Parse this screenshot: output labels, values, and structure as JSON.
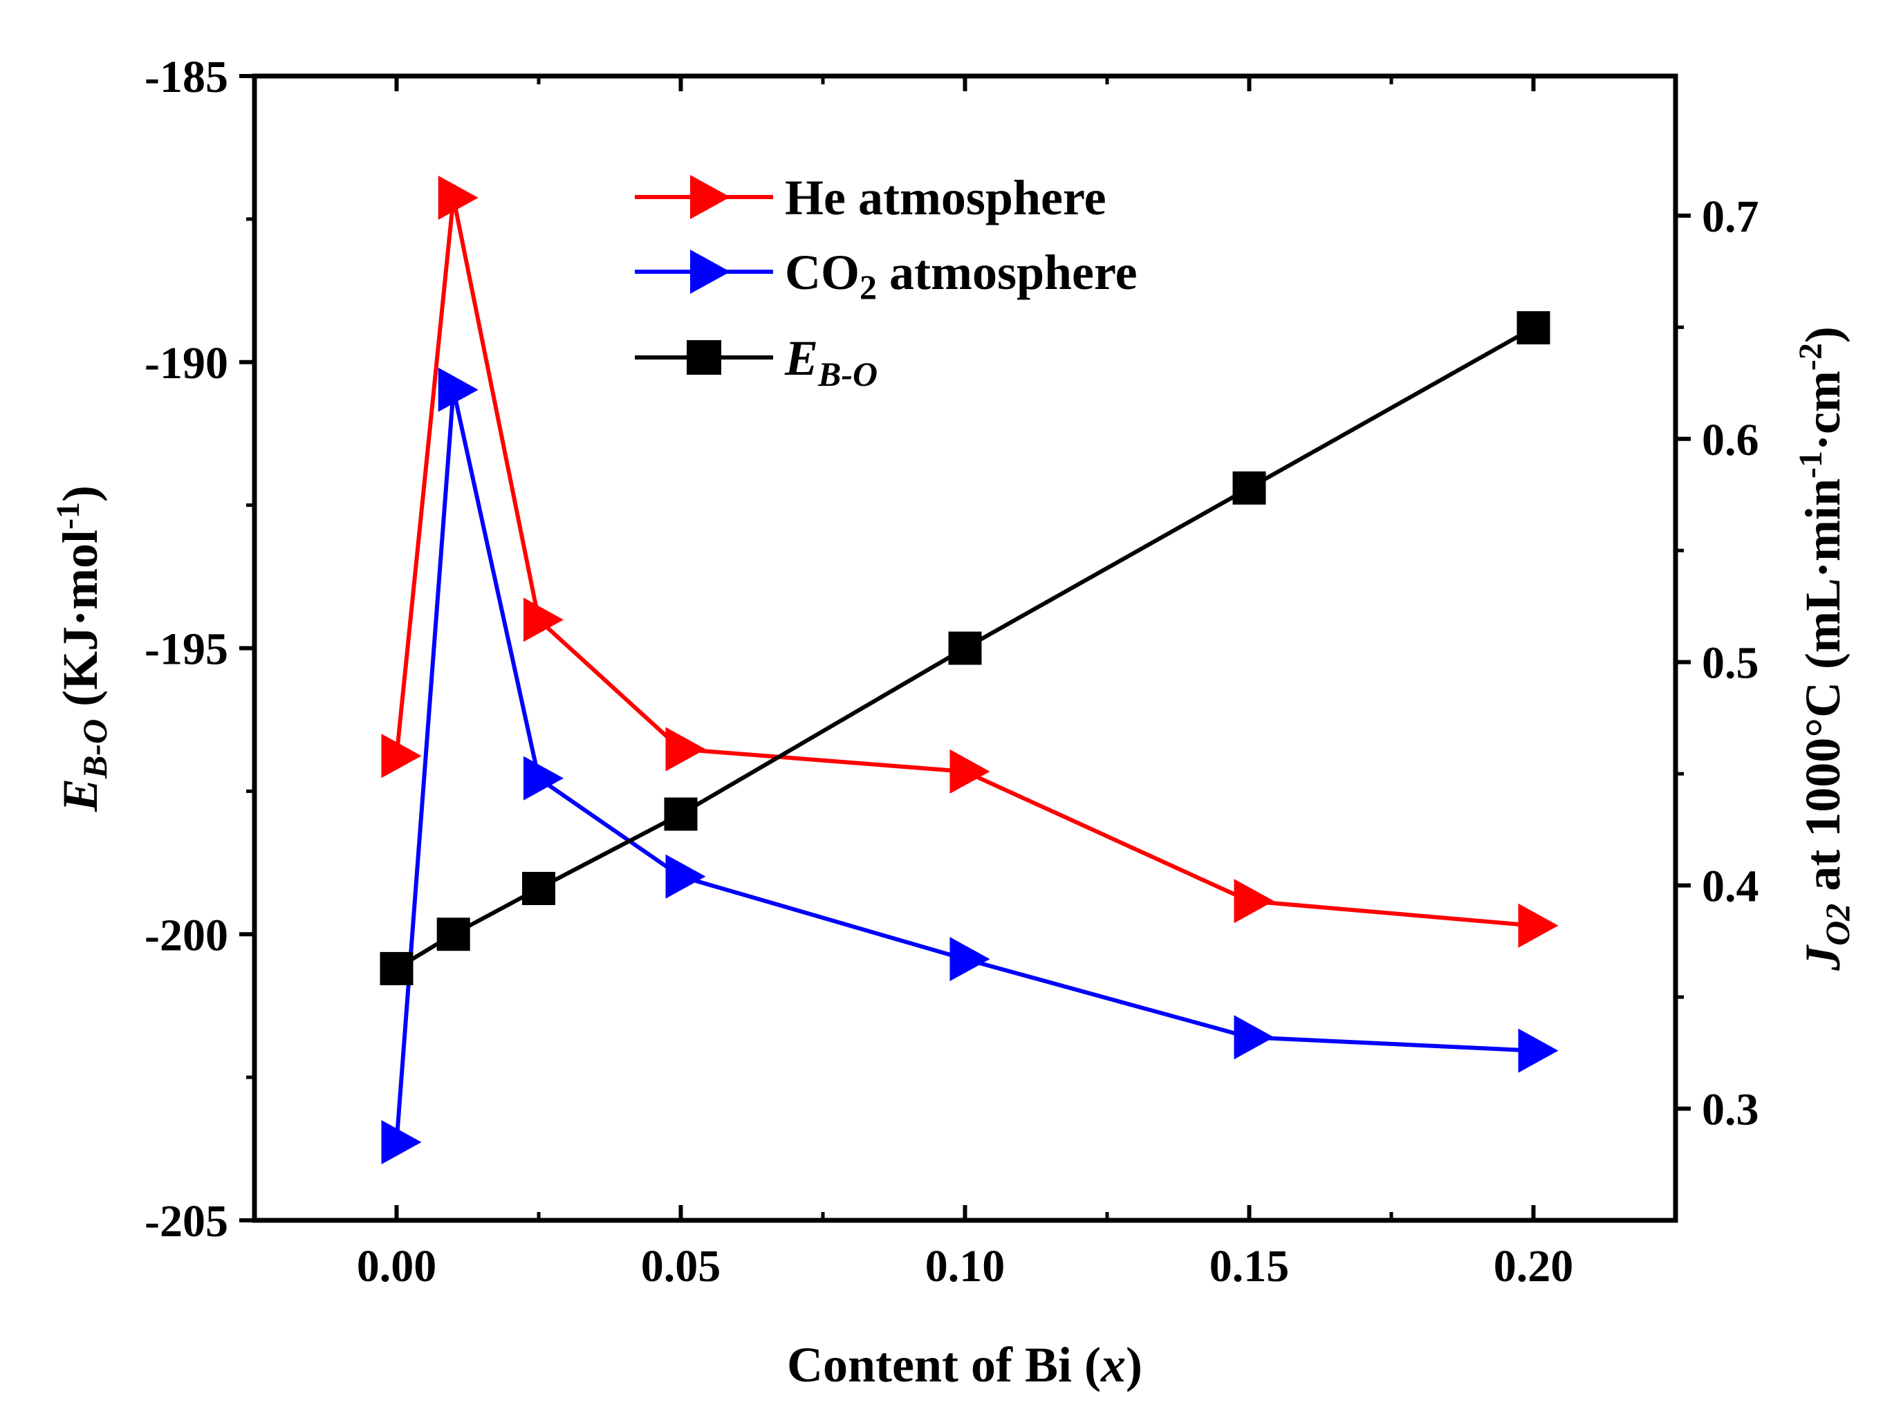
{
  "chart_data": {
    "type": "line",
    "title": "",
    "xlabel": {
      "pre": "Content of Bi (",
      "var": "x",
      "post": ")"
    },
    "ylabel_left": {
      "sym": "E",
      "sub": "B-O",
      "unit": " (KJ·mol",
      "sup": "-1",
      "close": ")"
    },
    "ylabel_right": {
      "sym": "J",
      "sub": "O2",
      "text": " at 1000°C (mL·min",
      "sup1": "-1",
      "mid": "·cm",
      "sup2": "-2",
      "close": ")"
    },
    "x_ticks": [
      "0.00",
      "0.05",
      "0.10",
      "0.15",
      "0.20"
    ],
    "x_tick_values": [
      0.0,
      0.05,
      0.1,
      0.15,
      0.2
    ],
    "xlim": [
      -0.025,
      0.225
    ],
    "y_left_ticks": [
      "-185",
      "-190",
      "-195",
      "-200",
      "-205"
    ],
    "y_left_tick_values": [
      -185,
      -190,
      -195,
      -200,
      -205
    ],
    "ylim_left": [
      -205,
      -185
    ],
    "y_right_ticks": [
      "0.7",
      "0.6",
      "0.5",
      "0.4",
      "0.3"
    ],
    "y_right_tick_values": [
      0.7,
      0.6,
      0.5,
      0.4,
      0.3
    ],
    "ylim_right": [
      0.25,
      0.7625
    ],
    "x": [
      0.0,
      0.01,
      0.025,
      0.05,
      0.1,
      0.15,
      0.2
    ],
    "series": [
      {
        "name": "He atmosphere",
        "axis": "right",
        "marker": "triangle-right",
        "color": "#ff0000",
        "values": [
          0.458,
          0.708,
          0.519,
          0.461,
          0.451,
          0.393,
          0.382
        ]
      },
      {
        "name": "CO2 atmosphere",
        "axis": "right",
        "marker": "triangle-right",
        "color": "#0000ff",
        "values": [
          0.285,
          0.622,
          0.448,
          0.404,
          0.367,
          0.332,
          0.326
        ]
      },
      {
        "name": "E_B-O",
        "axis": "left",
        "marker": "square",
        "color": "#000000",
        "values": [
          -200.6,
          -200.0,
          -199.2,
          -197.9,
          -195.0,
          -192.2,
          -189.4
        ]
      }
    ],
    "legend": {
      "position": "top-center",
      "entries": [
        {
          "label": "He atmosphere"
        },
        {
          "label": "CO",
          "sub": "2",
          "rest": " atmosphere"
        },
        {
          "label": "E",
          "sub": "B-O",
          "italic": true
        }
      ]
    }
  }
}
